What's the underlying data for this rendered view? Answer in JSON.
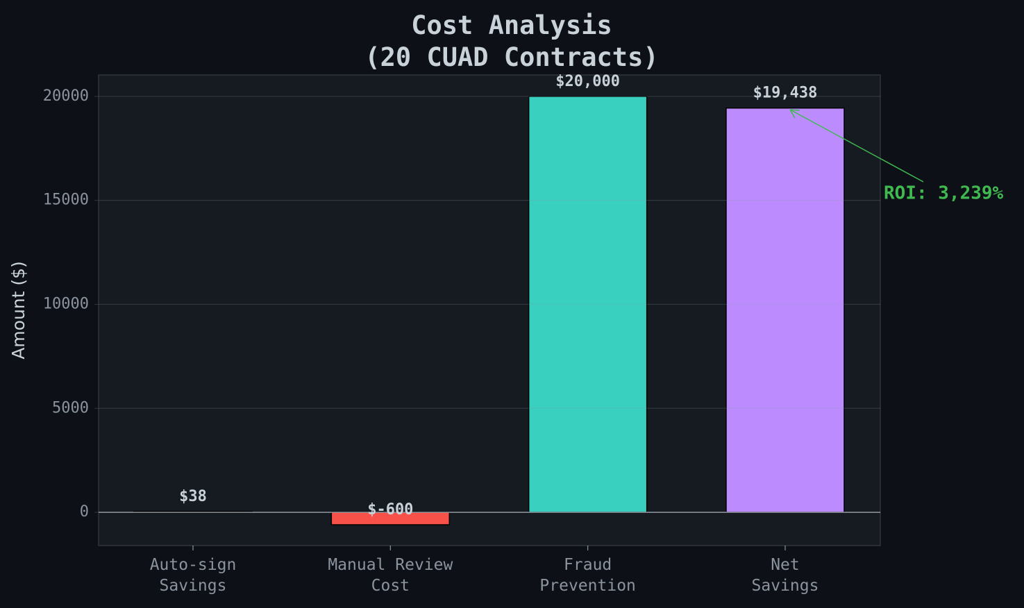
{
  "chart_data": {
    "type": "bar",
    "title": "Cost Analysis\n(20 CUAD Contracts)",
    "ylabel": "Amount ($)",
    "categories": [
      "Auto-sign\nSavings",
      "Manual Review\nCost",
      "Fraud\nPrevention",
      "Net\nSavings"
    ],
    "values": [
      38,
      -600,
      20000,
      19438
    ],
    "value_labels": [
      "$38",
      "$-600",
      "$20,000",
      "$19,438"
    ],
    "colors": [
      "#3fb950",
      "#f85149",
      "#39d0c0",
      "#bc8cff"
    ],
    "ylim": [
      -1600,
      21030
    ],
    "yticks": [
      0,
      5000,
      10000,
      15000,
      20000
    ],
    "grid": true,
    "zero_line": true,
    "annotation": "ROI: 3,239%"
  }
}
